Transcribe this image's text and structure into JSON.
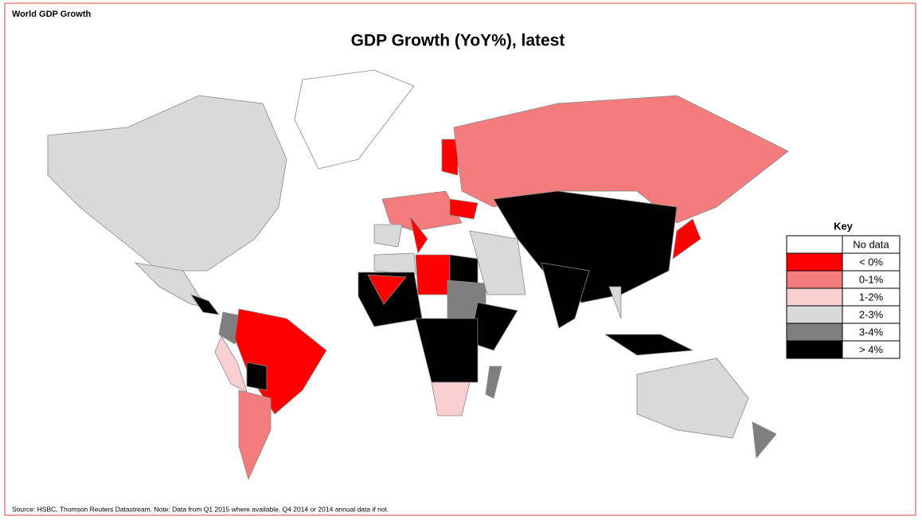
{
  "header": "World GDP Growth",
  "title": "GDP Growth (YoY%), latest",
  "legend": {
    "title": "Key",
    "entries": [
      {
        "label": "No data",
        "color": "#ffffff"
      },
      {
        "label": "< 0%",
        "color": "#ff0000"
      },
      {
        "label": "0-1%",
        "color": "#f47c7c"
      },
      {
        "label": "1-2%",
        "color": "#f9cfcf"
      },
      {
        "label": "2-3%",
        "color": "#d9d9d9"
      },
      {
        "label": "3-4%",
        "color": "#7f7f7f"
      },
      {
        "label": "> 4%",
        "color": "#000000"
      }
    ]
  },
  "source": "Source: HSBC, Thomson Reuters Datastream.  Note: Data from Q1 2015 where available, Q4 2014 or 2014 annual data if not."
}
